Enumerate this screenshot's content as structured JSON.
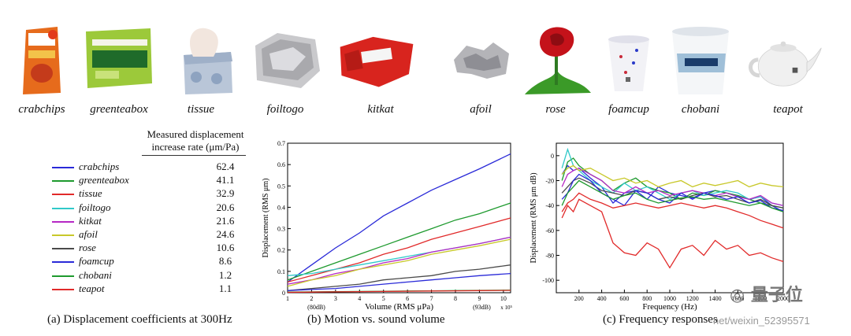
{
  "objects": [
    {
      "label": "crabchips",
      "icon": "crab-chips-bag-photo"
    },
    {
      "label": "greenteabox",
      "icon": "green-tea-box-photo"
    },
    {
      "label": "tissue",
      "icon": "tissue-box-photo"
    },
    {
      "label": "foiltogo",
      "icon": "foil-container-photo"
    },
    {
      "label": "kitkat",
      "icon": "kitkat-wrapper-photo"
    },
    {
      "label": "afoil",
      "icon": "aluminum-foil-photo"
    },
    {
      "label": "rose",
      "icon": "rose-photo"
    },
    {
      "label": "foamcup",
      "icon": "foam-cup-photo"
    },
    {
      "label": "chobani",
      "icon": "yogurt-cup-photo"
    },
    {
      "label": "teapot",
      "icon": "teapot-photo"
    }
  ],
  "table": {
    "header_line1": "Measured displacement",
    "header_line2": "increase rate (μm/Pa)",
    "rows": [
      {
        "name": "crabchips",
        "value": "62.4",
        "color": "#2a2ad8"
      },
      {
        "name": "greenteabox",
        "value": "41.1",
        "color": "#1e9a2e"
      },
      {
        "name": "tissue",
        "value": "32.9",
        "color": "#e12a2a"
      },
      {
        "name": "foiltogo",
        "value": "20.6",
        "color": "#31c9c9"
      },
      {
        "name": "kitkat",
        "value": "21.6",
        "color": "#b628c4"
      },
      {
        "name": "afoil",
        "value": "24.6",
        "color": "#c8c82a"
      },
      {
        "name": "rose",
        "value": "10.6",
        "color": "#4a4a4a"
      },
      {
        "name": "foamcup",
        "value": "8.6",
        "color": "#2a2ad8"
      },
      {
        "name": "chobani",
        "value": "1.2",
        "color": "#1e9a2e"
      },
      {
        "name": "teapot",
        "value": "1.1",
        "color": "#e12a2a"
      }
    ]
  },
  "captions": {
    "a": "(a) Displacement coefficients at 300Hz",
    "b": "(b) Motion vs. sound volume",
    "c": "(c) Frequency responses"
  },
  "watermark": {
    "brand": "量子位",
    "url": "net/weixin_52395571"
  },
  "chart_data": [
    {
      "type": "line",
      "xlabel": "Volume (RMS μPa)",
      "ylabel": "Displacement (RMS μm)",
      "xlim": [
        1,
        10.3
      ],
      "ylim": [
        0,
        0.7
      ],
      "x_exponent": "x 10⁵",
      "x_ticks": [
        "1",
        "2",
        "3",
        "4",
        "5",
        "6",
        "7",
        "8",
        "9",
        "10"
      ],
      "y_ticks": [
        "0",
        "0.1",
        "0.2",
        "0.3",
        "0.4",
        "0.5",
        "0.6",
        "0.7"
      ],
      "annotations": [
        "(80dB)",
        "(93dB)"
      ],
      "x": [
        1,
        2,
        3,
        4,
        5,
        6,
        7,
        8,
        9,
        10.3
      ],
      "series": [
        {
          "name": "crabchips",
          "color": "#2a2ad8",
          "values": [
            0.05,
            0.13,
            0.21,
            0.28,
            0.36,
            0.42,
            0.48,
            0.53,
            0.58,
            0.65
          ]
        },
        {
          "name": "greenteabox",
          "color": "#1e9a2e",
          "values": [
            0.06,
            0.1,
            0.14,
            0.18,
            0.22,
            0.26,
            0.3,
            0.34,
            0.37,
            0.42
          ]
        },
        {
          "name": "tissue",
          "color": "#e12a2a",
          "values": [
            0.05,
            0.08,
            0.11,
            0.14,
            0.18,
            0.21,
            0.25,
            0.28,
            0.31,
            0.35
          ]
        },
        {
          "name": "foiltogo",
          "color": "#31c9c9",
          "values": [
            0.08,
            0.09,
            0.11,
            0.13,
            0.15,
            0.17,
            0.19,
            0.21,
            0.23,
            0.26
          ]
        },
        {
          "name": "kitkat",
          "color": "#b628c4",
          "values": [
            0.04,
            0.06,
            0.09,
            0.11,
            0.14,
            0.16,
            0.19,
            0.21,
            0.23,
            0.26
          ]
        },
        {
          "name": "afoil",
          "color": "#c8c82a",
          "values": [
            0.03,
            0.06,
            0.08,
            0.11,
            0.13,
            0.15,
            0.18,
            0.2,
            0.22,
            0.25
          ]
        },
        {
          "name": "rose",
          "color": "#4a4a4a",
          "values": [
            0.01,
            0.02,
            0.03,
            0.04,
            0.06,
            0.07,
            0.08,
            0.1,
            0.11,
            0.13
          ]
        },
        {
          "name": "foamcup",
          "color": "#2a2ad8",
          "values": [
            0.01,
            0.015,
            0.02,
            0.03,
            0.04,
            0.05,
            0.06,
            0.07,
            0.08,
            0.09
          ]
        },
        {
          "name": "chobani",
          "color": "#1e9a2e",
          "values": [
            0.003,
            0.004,
            0.005,
            0.006,
            0.007,
            0.008,
            0.009,
            0.01,
            0.011,
            0.012
          ]
        },
        {
          "name": "teapot",
          "color": "#e12a2a",
          "values": [
            0.002,
            0.003,
            0.004,
            0.005,
            0.006,
            0.007,
            0.008,
            0.009,
            0.01,
            0.011
          ]
        }
      ]
    },
    {
      "type": "line",
      "xlabel": "Frequency (Hz)",
      "ylabel": "Displacement (RMS μm dB)",
      "xlim": [
        0,
        2000
      ],
      "ylim": [
        -110,
        10
      ],
      "x_ticks": [
        "200",
        "400",
        "600",
        "800",
        "1000",
        "1200",
        "1400",
        "1600",
        "1800",
        "2000"
      ],
      "y_ticks": [
        "0",
        "-20",
        "-40",
        "-60",
        "-80",
        "-100"
      ],
      "x": [
        50,
        100,
        150,
        200,
        300,
        400,
        500,
        600,
        700,
        800,
        900,
        1000,
        1100,
        1200,
        1300,
        1400,
        1500,
        1600,
        1700,
        1800,
        1900,
        2000
      ],
      "series": [
        {
          "name": "crabchips",
          "color": "#2a2ad8",
          "values": [
            -15,
            -8,
            -12,
            -10,
            -18,
            -25,
            -38,
            -30,
            -28,
            -35,
            -25,
            -30,
            -32,
            -34,
            -30,
            -28,
            -30,
            -32,
            -35,
            -33,
            -40,
            -45
          ]
        },
        {
          "name": "greenteabox",
          "color": "#1e9a2e",
          "values": [
            -20,
            -5,
            -2,
            -8,
            -15,
            -20,
            -28,
            -22,
            -18,
            -25,
            -28,
            -30,
            -35,
            -30,
            -32,
            -28,
            -30,
            -32,
            -35,
            -38,
            -40,
            -42
          ]
        },
        {
          "name": "tissue",
          "color": "#e12a2a",
          "values": [
            -50,
            -40,
            -45,
            -35,
            -40,
            -45,
            -70,
            -78,
            -80,
            -70,
            -75,
            -90,
            -75,
            -72,
            -80,
            -68,
            -75,
            -72,
            -80,
            -78,
            -82,
            -85
          ]
        },
        {
          "name": "foiltogo",
          "color": "#31c9c9",
          "values": [
            -10,
            5,
            -8,
            -12,
            -20,
            -25,
            -30,
            -22,
            -28,
            -25,
            -30,
            -35,
            -30,
            -28,
            -32,
            -30,
            -28,
            -30,
            -35,
            -33,
            -38,
            -40
          ]
        },
        {
          "name": "kitkat",
          "color": "#b628c4",
          "values": [
            -25,
            -15,
            -12,
            -10,
            -15,
            -20,
            -28,
            -30,
            -25,
            -30,
            -28,
            -32,
            -30,
            -28,
            -30,
            -32,
            -30,
            -33,
            -35,
            -32,
            -38,
            -40
          ]
        },
        {
          "name": "afoil",
          "color": "#c8c82a",
          "values": [
            -15,
            -10,
            -8,
            -12,
            -10,
            -15,
            -20,
            -18,
            -22,
            -20,
            -25,
            -22,
            -20,
            -25,
            -22,
            -24,
            -22,
            -20,
            -25,
            -22,
            -24,
            -25
          ]
        },
        {
          "name": "rose",
          "color": "#4a4a4a",
          "values": [
            -30,
            -25,
            -20,
            -18,
            -22,
            -28,
            -30,
            -32,
            -28,
            -30,
            -35,
            -33,
            -35,
            -32,
            -30,
            -33,
            -32,
            -35,
            -38,
            -35,
            -40,
            -42
          ]
        },
        {
          "name": "foamcup",
          "color": "#2a2ad8",
          "values": [
            -35,
            -30,
            -20,
            -15,
            -20,
            -30,
            -35,
            -40,
            -28,
            -30,
            -35,
            -38,
            -30,
            -35,
            -30,
            -32,
            -35,
            -33,
            -38,
            -36,
            -42,
            -44
          ]
        },
        {
          "name": "chobani",
          "color": "#1e9a2e",
          "values": [
            -40,
            -30,
            -25,
            -20,
            -25,
            -30,
            -35,
            -32,
            -30,
            -35,
            -38,
            -36,
            -34,
            -33,
            -35,
            -34,
            -36,
            -38,
            -40,
            -38,
            -42,
            -45
          ]
        },
        {
          "name": "teapot",
          "color": "#e12a2a",
          "values": [
            -45,
            -38,
            -35,
            -30,
            -35,
            -38,
            -42,
            -40,
            -38,
            -40,
            -42,
            -40,
            -38,
            -40,
            -42,
            -40,
            -42,
            -45,
            -48,
            -52,
            -55,
            -58
          ]
        }
      ]
    }
  ]
}
